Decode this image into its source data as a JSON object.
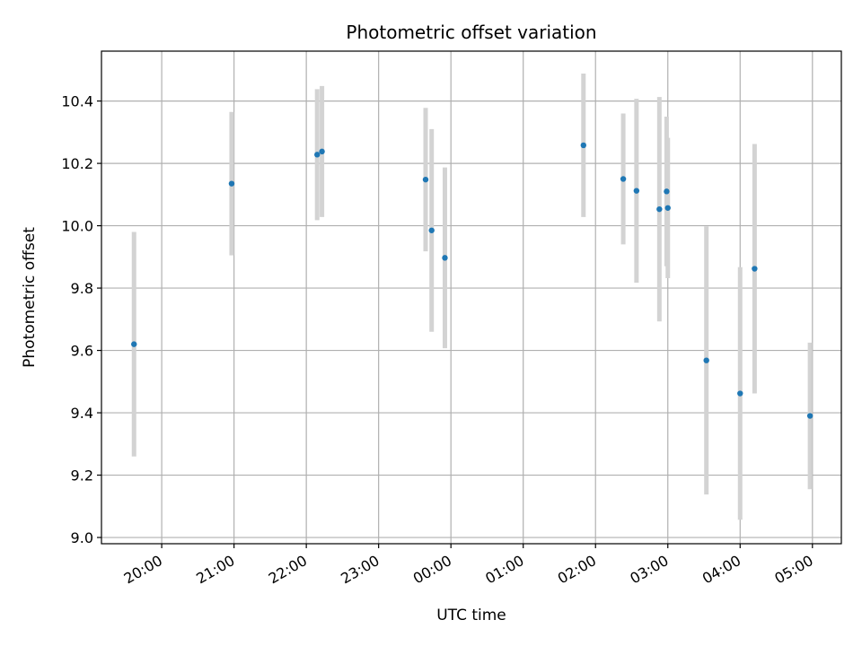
{
  "chart_data": {
    "type": "scatter",
    "title": "Photometric offset variation",
    "xlabel": "UTC time",
    "ylabel": "Photometric offset",
    "x_axis": "time",
    "x_ticks": [
      "20:00",
      "21:00",
      "22:00",
      "23:00",
      "00:00",
      "01:00",
      "02:00",
      "03:00",
      "04:00",
      "05:00"
    ],
    "xlim": [
      "19:10",
      "05:24"
    ],
    "y_ticks": [
      9.0,
      9.2,
      9.4,
      9.6,
      9.8,
      10.0,
      10.2,
      10.4
    ],
    "ylim": [
      8.98,
      10.56
    ],
    "grid": true,
    "marker_color": "#1f77b4",
    "errorbar_color": "#d3d3d3",
    "points": [
      {
        "x": "19:37",
        "y": 9.62,
        "err": 0.36
      },
      {
        "x": "20:58",
        "y": 10.135,
        "err": 0.23
      },
      {
        "x": "22:09",
        "y": 10.228,
        "err": 0.21
      },
      {
        "x": "22:13",
        "y": 10.238,
        "err": 0.21
      },
      {
        "x": "23:39",
        "y": 10.148,
        "err": 0.23
      },
      {
        "x": "23:44",
        "y": 9.985,
        "err": 0.325
      },
      {
        "x": "23:55",
        "y": 9.897,
        "err": 0.29
      },
      {
        "x": "01:50",
        "y": 10.258,
        "err": 0.23
      },
      {
        "x": "02:23",
        "y": 10.15,
        "err": 0.21
      },
      {
        "x": "02:34",
        "y": 10.112,
        "err": 0.295
      },
      {
        "x": "02:53",
        "y": 10.053,
        "err": 0.36
      },
      {
        "x": "02:59",
        "y": 10.11,
        "err": 0.24
      },
      {
        "x": "03:00",
        "y": 10.057,
        "err": 0.225
      },
      {
        "x": "03:32",
        "y": 9.568,
        "err": 0.43
      },
      {
        "x": "04:00",
        "y": 9.462,
        "err": 0.405
      },
      {
        "x": "04:12",
        "y": 9.862,
        "err": 0.4
      },
      {
        "x": "04:58",
        "y": 9.39,
        "err": 0.235
      }
    ]
  }
}
